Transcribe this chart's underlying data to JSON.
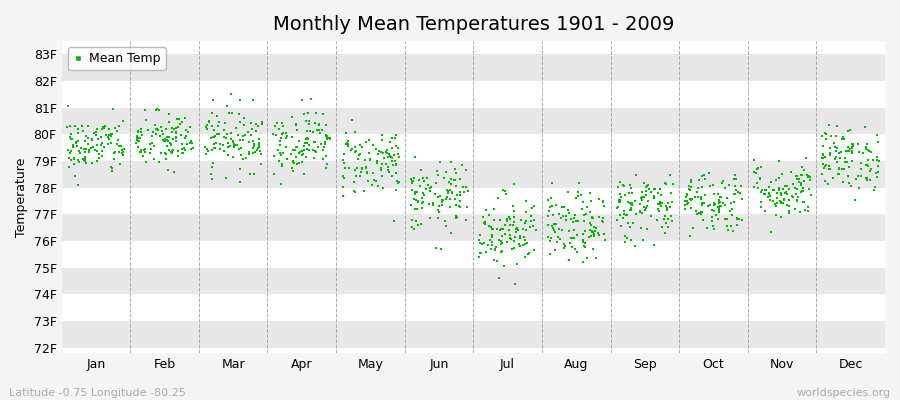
{
  "title": "Monthly Mean Temperatures 1901 - 2009",
  "ylabel": "Temperature",
  "xlabel_labels": [
    "Jan",
    "Feb",
    "Mar",
    "Apr",
    "May",
    "Jun",
    "Jul",
    "Aug",
    "Sep",
    "Oct",
    "Nov",
    "Dec"
  ],
  "ytick_labels": [
    "72F",
    "73F",
    "74F",
    "75F",
    "76F",
    "77F",
    "78F",
    "79F",
    "80F",
    "81F",
    "82F",
    "83F"
  ],
  "ytick_values": [
    72,
    73,
    74,
    75,
    76,
    77,
    78,
    79,
    80,
    81,
    82,
    83
  ],
  "ylim": [
    71.8,
    83.5
  ],
  "month_means": [
    79.55,
    79.75,
    79.85,
    79.75,
    79.0,
    77.6,
    76.4,
    76.5,
    77.3,
    77.5,
    77.9,
    79.1
  ],
  "month_stds": [
    0.55,
    0.55,
    0.6,
    0.6,
    0.65,
    0.65,
    0.7,
    0.65,
    0.65,
    0.6,
    0.55,
    0.6
  ],
  "n_years": 109,
  "dot_color": "#00BB00",
  "dot_size": 3,
  "marker": "s",
  "background_color": "#f5f5f5",
  "stripe_color_light": "#ffffff",
  "stripe_color_dark": "#e8e8e8",
  "legend_label": "Mean Temp",
  "footer_left": "Latitude -0.75 Longitude -80.25",
  "footer_right": "worldspecies.org",
  "title_fontsize": 14,
  "axis_fontsize": 9,
  "footer_fontsize": 8,
  "random_seed": 42
}
